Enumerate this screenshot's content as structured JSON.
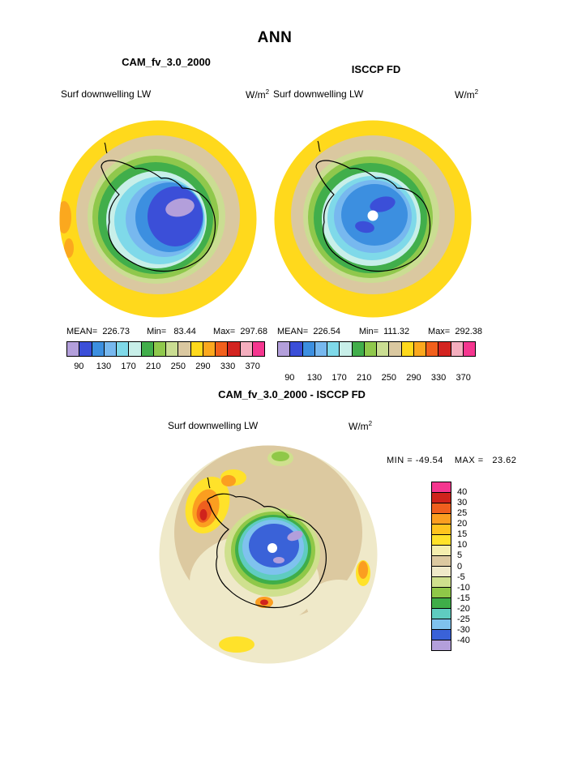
{
  "figure": {
    "season_title": "ANN",
    "panels": {
      "cam": {
        "title": "CAM_fv_3.0_2000",
        "field": "Surf downwelling LW",
        "units_base": "W/m",
        "units_exp": "2",
        "stats": {
          "mean": "MEAN=  226.73",
          "min": "Min=   83.44",
          "max": "Max=  297.68"
        }
      },
      "isccp": {
        "title": "ISCCP FD",
        "field": "Surf downwelling LW",
        "units_base": "W/m",
        "units_exp": "2",
        "stats": {
          "mean": "MEAN=  226.54",
          "min": "Min=  111.32",
          "max": "Max=  292.38"
        }
      },
      "diff": {
        "title": "CAM_fv_3.0_2000 - ISCCP FD",
        "field": "Surf downwelling LW",
        "units_base": "W/m",
        "units_exp": "2",
        "min_text": "MIN = -49.54",
        "max_text": "MAX =   23.62"
      }
    }
  },
  "palettes": {
    "absolute": [
      "#b39fdb",
      "#3b4fd8",
      "#3c8fe0",
      "#77b8ef",
      "#7fd9e9",
      "#c8efe9",
      "#41ae4b",
      "#8fc84c",
      "#cadd92",
      "#dac8a0",
      "#ffd91c",
      "#fba81e",
      "#f2601c",
      "#d32420",
      "#f4aebe",
      "#f5368f"
    ],
    "difference": [
      "#f5368f",
      "#d0231c",
      "#ef5f1e",
      "#fb9e20",
      "#ffc41e",
      "#ffe22a",
      "#f4eeae",
      "#dcc9a0",
      "#efe9c9",
      "#cfe08e",
      "#8fc848",
      "#3fae49",
      "#5fccc0",
      "#7fc2ee",
      "#3a62d8",
      "#b39fdb"
    ]
  },
  "colorbars": {
    "absolute_ticks": [
      "90",
      "130",
      "170",
      "210",
      "250",
      "290",
      "330",
      "370"
    ],
    "difference_ticks": [
      "40",
      "30",
      "25",
      "20",
      "15",
      "10",
      "5",
      "0",
      "-5",
      "-10",
      "-15",
      "-20",
      "-25",
      "-30",
      "-40"
    ]
  },
  "chart_data": [
    {
      "type": "heatmap",
      "subtype": "filled-contour-map-south-polar",
      "panel": "top-left",
      "title": "CAM_fv_3.0_2000",
      "season": "ANN",
      "variable": "Surf downwelling LW",
      "units": "W/m²",
      "region": "Antarctica (south polar stereographic)",
      "stats": {
        "mean": 226.73,
        "min": 83.44,
        "max": 297.68
      },
      "contour_levels": [
        90,
        110,
        130,
        150,
        170,
        190,
        210,
        230,
        250,
        270,
        290,
        310,
        330,
        350,
        370
      ],
      "colorbar_tick_labels": [
        90,
        130,
        170,
        210,
        250,
        290,
        330,
        370
      ],
      "palette_ref": "palettes.absolute",
      "legend_position": "below"
    },
    {
      "type": "heatmap",
      "subtype": "filled-contour-map-south-polar",
      "panel": "top-right",
      "title": "ISCCP FD",
      "season": "ANN",
      "variable": "Surf downwelling LW",
      "units": "W/m²",
      "region": "Antarctica (south polar stereographic)",
      "stats": {
        "mean": 226.54,
        "min": 111.32,
        "max": 292.38
      },
      "contour_levels": [
        90,
        110,
        130,
        150,
        170,
        190,
        210,
        230,
        250,
        270,
        290,
        310,
        330,
        350,
        370
      ],
      "colorbar_tick_labels": [
        90,
        130,
        170,
        210,
        250,
        290,
        330,
        370
      ],
      "palette_ref": "palettes.absolute",
      "legend_position": "below"
    },
    {
      "type": "heatmap",
      "subtype": "filled-contour-map-south-polar-difference",
      "panel": "bottom",
      "title": "CAM_fv_3.0_2000 - ISCCP FD",
      "season": "ANN",
      "variable": "Surf downwelling LW",
      "units": "W/m²",
      "region": "Antarctica (south polar stereographic)",
      "stats": {
        "min": -49.54,
        "max": 23.62
      },
      "contour_levels": [
        -40,
        -30,
        -25,
        -20,
        -15,
        -10,
        -5,
        0,
        5,
        10,
        15,
        20,
        25,
        30,
        40
      ],
      "palette_ref": "palettes.difference",
      "legend_position": "right"
    }
  ]
}
